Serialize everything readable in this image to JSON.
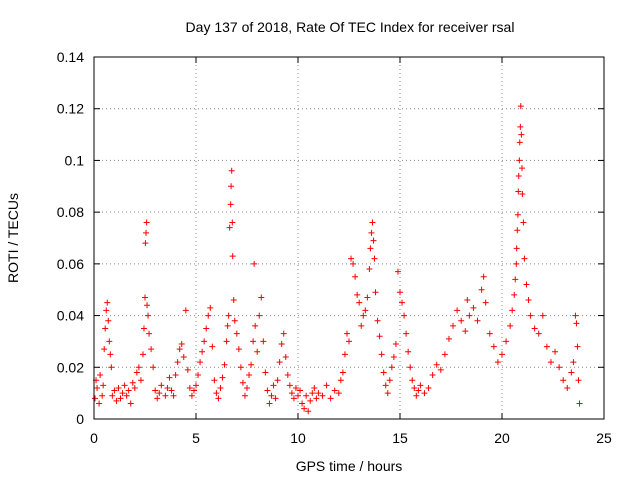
{
  "chart_data": {
    "type": "scatter",
    "title": "Day 137 of 2018, Rate Of TEC Index for receiver rsal",
    "xlabel": "GPS time / hours",
    "ylabel": "ROTI / TECUs",
    "xlim": [
      0,
      25
    ],
    "ylim": [
      0,
      0.14
    ],
    "xticks": [
      0,
      5,
      10,
      15,
      20,
      25
    ],
    "xtick_labels": [
      "0",
      "5",
      "10",
      "15",
      "20",
      "25"
    ],
    "yticks": [
      0,
      0.02,
      0.04,
      0.06,
      0.08,
      0.1,
      0.12,
      0.14
    ],
    "ytick_labels": [
      "0",
      "0.02",
      "0.04",
      "0.06",
      "0.08",
      "0.1",
      "0.12",
      "0.14"
    ],
    "grid": true,
    "marker": "+",
    "color": "#ff0000",
    "series": [
      {
        "name": "ROTI",
        "points": [
          [
            0.05,
            0.008
          ],
          [
            0.1,
            0.015
          ],
          [
            0.15,
            0.012
          ],
          [
            0.25,
            0.006
          ],
          [
            0.3,
            0.017
          ],
          [
            0.4,
            0.009
          ],
          [
            0.45,
            0.013
          ],
          [
            0.5,
            0.027
          ],
          [
            0.55,
            0.035
          ],
          [
            0.6,
            0.042
          ],
          [
            0.65,
            0.045
          ],
          [
            0.7,
            0.038
          ],
          [
            0.75,
            0.03
          ],
          [
            0.8,
            0.025
          ],
          [
            0.85,
            0.02
          ],
          [
            0.9,
            0.009
          ],
          [
            1.0,
            0.011
          ],
          [
            1.1,
            0.007
          ],
          [
            1.2,
            0.012
          ],
          [
            1.3,
            0.008
          ],
          [
            1.4,
            0.01
          ],
          [
            1.5,
            0.013
          ],
          [
            1.6,
            0.009
          ],
          [
            1.7,
            0.011
          ],
          [
            1.8,
            0.006
          ],
          [
            1.9,
            0.014
          ],
          [
            2.0,
            0.012
          ],
          [
            2.1,
            0.018
          ],
          [
            2.2,
            0.02
          ],
          [
            2.3,
            0.015
          ],
          [
            2.4,
            0.025
          ],
          [
            2.45,
            0.035
          ],
          [
            2.5,
            0.047
          ],
          [
            2.52,
            0.068
          ],
          [
            2.55,
            0.072
          ],
          [
            2.58,
            0.076
          ],
          [
            2.6,
            0.044
          ],
          [
            2.65,
            0.04
          ],
          [
            2.7,
            0.033
          ],
          [
            2.8,
            0.027
          ],
          [
            2.9,
            0.02
          ],
          [
            3.0,
            0.011
          ],
          [
            3.1,
            0.008
          ],
          [
            3.2,
            0.01
          ],
          [
            3.3,
            0.013
          ],
          [
            3.5,
            0.009
          ],
          [
            3.6,
            0.012
          ],
          [
            3.7,
            0.016
          ],
          [
            3.8,
            0.011
          ],
          [
            3.9,
            0.009
          ],
          [
            4.0,
            0.017
          ],
          [
            4.1,
            0.022
          ],
          [
            4.2,
            0.027
          ],
          [
            4.3,
            0.029
          ],
          [
            4.4,
            0.024
          ],
          [
            4.5,
            0.042
          ],
          [
            4.6,
            0.019
          ],
          [
            4.7,
            0.012
          ],
          [
            4.8,
            0.009
          ],
          [
            4.9,
            0.011
          ],
          [
            5.0,
            0.013
          ],
          [
            5.1,
            0.017
          ],
          [
            5.2,
            0.022
          ],
          [
            5.3,
            0.026
          ],
          [
            5.4,
            0.03
          ],
          [
            5.5,
            0.035
          ],
          [
            5.6,
            0.04
          ],
          [
            5.7,
            0.043
          ],
          [
            5.8,
            0.028
          ],
          [
            5.9,
            0.015
          ],
          [
            6.0,
            0.01
          ],
          [
            6.1,
            0.008
          ],
          [
            6.2,
            0.012
          ],
          [
            6.3,
            0.016
          ],
          [
            6.4,
            0.021
          ],
          [
            6.5,
            0.03
          ],
          [
            6.55,
            0.036
          ],
          [
            6.6,
            0.04
          ],
          [
            6.65,
            0.074
          ],
          [
            6.7,
            0.083
          ],
          [
            6.72,
            0.09
          ],
          [
            6.75,
            0.096
          ],
          [
            6.78,
            0.076
          ],
          [
            6.8,
            0.063
          ],
          [
            6.85,
            0.046
          ],
          [
            6.9,
            0.038
          ],
          [
            7.0,
            0.033
          ],
          [
            7.1,
            0.027
          ],
          [
            7.2,
            0.02
          ],
          [
            7.3,
            0.014
          ],
          [
            7.4,
            0.009
          ],
          [
            7.5,
            0.012
          ],
          [
            7.6,
            0.017
          ],
          [
            7.7,
            0.021
          ],
          [
            7.8,
            0.03
          ],
          [
            7.85,
            0.06
          ],
          [
            7.9,
            0.036
          ],
          [
            8.0,
            0.026
          ],
          [
            8.1,
            0.04
          ],
          [
            8.2,
            0.047
          ],
          [
            8.3,
            0.03
          ],
          [
            8.4,
            0.018
          ],
          [
            8.5,
            0.011
          ],
          [
            8.6,
            0.006
          ],
          [
            8.7,
            0.009
          ],
          [
            8.8,
            0.013
          ],
          [
            8.9,
            0.008
          ],
          [
            9.0,
            0.015
          ],
          [
            9.1,
            0.022
          ],
          [
            9.2,
            0.029
          ],
          [
            9.3,
            0.033
          ],
          [
            9.4,
            0.024
          ],
          [
            9.5,
            0.017
          ],
          [
            9.6,
            0.013
          ],
          [
            9.7,
            0.01
          ],
          [
            9.8,
            0.008
          ],
          [
            9.9,
            0.012
          ],
          [
            10.0,
            0.009
          ],
          [
            10.1,
            0.011
          ],
          [
            10.2,
            0.006
          ],
          [
            10.3,
            0.004
          ],
          [
            10.4,
            0.009
          ],
          [
            10.5,
            0.003
          ],
          [
            10.6,
            0.007
          ],
          [
            10.7,
            0.01
          ],
          [
            10.8,
            0.012
          ],
          [
            10.9,
            0.008
          ],
          [
            11.0,
            0.01
          ],
          [
            11.2,
            0.009
          ],
          [
            11.4,
            0.013
          ],
          [
            11.6,
            0.008
          ],
          [
            11.8,
            0.011
          ],
          [
            12.0,
            0.01
          ],
          [
            12.1,
            0.015
          ],
          [
            12.2,
            0.018
          ],
          [
            12.3,
            0.025
          ],
          [
            12.4,
            0.033
          ],
          [
            12.5,
            0.03
          ],
          [
            12.6,
            0.062
          ],
          [
            12.7,
            0.06
          ],
          [
            12.8,
            0.055
          ],
          [
            12.9,
            0.048
          ],
          [
            13.0,
            0.045
          ],
          [
            13.1,
            0.036
          ],
          [
            13.2,
            0.04
          ],
          [
            13.3,
            0.042
          ],
          [
            13.4,
            0.047
          ],
          [
            13.5,
            0.058
          ],
          [
            13.55,
            0.066
          ],
          [
            13.6,
            0.072
          ],
          [
            13.65,
            0.076
          ],
          [
            13.7,
            0.069
          ],
          [
            13.75,
            0.062
          ],
          [
            13.8,
            0.049
          ],
          [
            13.9,
            0.038
          ],
          [
            14.0,
            0.032
          ],
          [
            14.1,
            0.025
          ],
          [
            14.2,
            0.018
          ],
          [
            14.3,
            0.013
          ],
          [
            14.4,
            0.01
          ],
          [
            14.5,
            0.015
          ],
          [
            14.6,
            0.02
          ],
          [
            14.7,
            0.024
          ],
          [
            14.8,
            0.029
          ],
          [
            14.9,
            0.057
          ],
          [
            15.0,
            0.049
          ],
          [
            15.1,
            0.045
          ],
          [
            15.2,
            0.04
          ],
          [
            15.3,
            0.033
          ],
          [
            15.4,
            0.026
          ],
          [
            15.5,
            0.02
          ],
          [
            15.6,
            0.015
          ],
          [
            15.7,
            0.012
          ],
          [
            15.8,
            0.009
          ],
          [
            15.9,
            0.011
          ],
          [
            16.0,
            0.013
          ],
          [
            16.2,
            0.01
          ],
          [
            16.4,
            0.012
          ],
          [
            16.6,
            0.017
          ],
          [
            16.8,
            0.021
          ],
          [
            17.0,
            0.019
          ],
          [
            17.2,
            0.025
          ],
          [
            17.4,
            0.031
          ],
          [
            17.6,
            0.036
          ],
          [
            17.8,
            0.042
          ],
          [
            18.0,
            0.038
          ],
          [
            18.2,
            0.034
          ],
          [
            18.3,
            0.046
          ],
          [
            18.4,
            0.04
          ],
          [
            18.6,
            0.043
          ],
          [
            18.8,
            0.038
          ],
          [
            19.0,
            0.05
          ],
          [
            19.1,
            0.055
          ],
          [
            19.2,
            0.045
          ],
          [
            19.4,
            0.033
          ],
          [
            19.6,
            0.028
          ],
          [
            19.8,
            0.022
          ],
          [
            20.0,
            0.025
          ],
          [
            20.2,
            0.03
          ],
          [
            20.4,
            0.036
          ],
          [
            20.5,
            0.042
          ],
          [
            20.6,
            0.048
          ],
          [
            20.65,
            0.054
          ],
          [
            20.7,
            0.06
          ],
          [
            20.72,
            0.066
          ],
          [
            20.75,
            0.073
          ],
          [
            20.78,
            0.079
          ],
          [
            20.8,
            0.088
          ],
          [
            20.82,
            0.094
          ],
          [
            20.85,
            0.1
          ],
          [
            20.87,
            0.107
          ],
          [
            20.9,
            0.113
          ],
          [
            20.92,
            0.121
          ],
          [
            20.95,
            0.11
          ],
          [
            20.98,
            0.097
          ],
          [
            21.0,
            0.087
          ],
          [
            21.05,
            0.076
          ],
          [
            21.1,
            0.062
          ],
          [
            21.2,
            0.052
          ],
          [
            21.3,
            0.046
          ],
          [
            21.4,
            0.04
          ],
          [
            21.6,
            0.035
          ],
          [
            21.8,
            0.033
          ],
          [
            22.0,
            0.04
          ],
          [
            22.2,
            0.028
          ],
          [
            22.4,
            0.022
          ],
          [
            22.6,
            0.026
          ],
          [
            22.8,
            0.02
          ],
          [
            23.0,
            0.015
          ],
          [
            23.2,
            0.012
          ],
          [
            23.4,
            0.018
          ],
          [
            23.5,
            0.022
          ],
          [
            23.6,
            0.04
          ],
          [
            23.65,
            0.037
          ],
          [
            23.7,
            0.028
          ],
          [
            23.75,
            0.015
          ],
          [
            23.8,
            0.006
          ]
        ]
      }
    ]
  }
}
